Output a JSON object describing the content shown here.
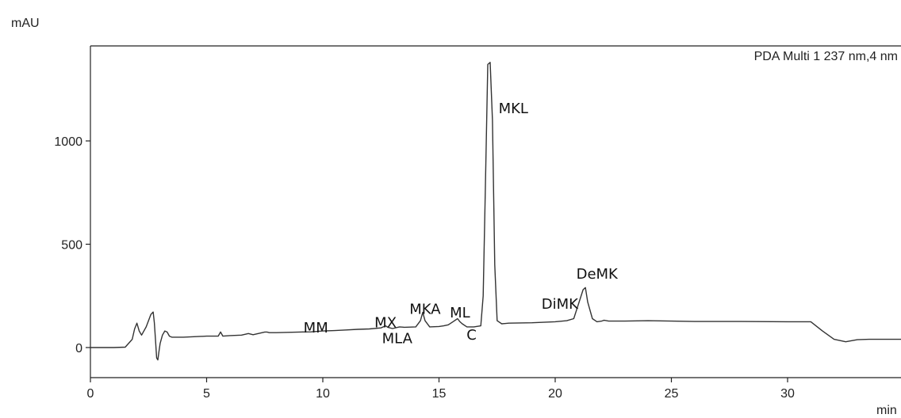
{
  "chart_data": {
    "type": "line",
    "title": "",
    "xlabel": "min",
    "ylabel": "mAU",
    "xlim": [
      0,
      35
    ],
    "ylim": [
      -120,
      1460
    ],
    "x_ticks": [
      0,
      5,
      10,
      15,
      20,
      25,
      30
    ],
    "y_ticks": [
      0,
      500,
      1000
    ],
    "grid": false,
    "legend": {
      "label": "PDA Multi 1 237 nm,4 nm",
      "position": "top-right"
    },
    "series": [
      {
        "name": "PDA Multi 1 237 nm,4 nm",
        "x": [
          0,
          1,
          1.5,
          1.8,
          1.9,
          2.0,
          2.1,
          2.2,
          2.4,
          2.6,
          2.7,
          2.75,
          2.8,
          2.85,
          2.9,
          2.95,
          3.0,
          3.1,
          3.2,
          3.3,
          3.4,
          3.5,
          4,
          5,
          5.5,
          5.6,
          5.7,
          6,
          6.5,
          6.8,
          7,
          7.5,
          7.6,
          7.7,
          8,
          9,
          9.5,
          10,
          10.5,
          11,
          11.5,
          12,
          12.5,
          12.7,
          12.8,
          13,
          13.3,
          13.5,
          14,
          14.2,
          14.3,
          14.4,
          14.6,
          15,
          15.2,
          15.4,
          15.6,
          15.8,
          15.9,
          16,
          16.2,
          16.5,
          16.8,
          16.9,
          17.0,
          17.1,
          17.2,
          17.3,
          17.4,
          17.5,
          17.7,
          18,
          19,
          20,
          20.5,
          20.8,
          21.0,
          21.2,
          21.3,
          21.4,
          21.6,
          21.8,
          22,
          22.1,
          22.3,
          23,
          24,
          25,
          26,
          28,
          30,
          31,
          31.5,
          32,
          32.5,
          33,
          33.5,
          35
        ],
        "values": [
          0,
          0,
          2,
          40,
          90,
          118,
          80,
          60,
          100,
          160,
          172,
          120,
          40,
          -50,
          -60,
          -20,
          20,
          60,
          80,
          75,
          55,
          50,
          50,
          55,
          55,
          75,
          55,
          58,
          60,
          68,
          62,
          75,
          75,
          72,
          72,
          75,
          76,
          80,
          82,
          85,
          88,
          90,
          95,
          105,
          98,
          92,
          100,
          98,
          100,
          130,
          170,
          130,
          100,
          102,
          105,
          110,
          125,
          140,
          125,
          115,
          100,
          100,
          105,
          250,
          800,
          1370,
          1380,
          1100,
          400,
          130,
          115,
          118,
          120,
          125,
          130,
          140,
          210,
          280,
          290,
          220,
          140,
          125,
          128,
          132,
          128,
          128,
          130,
          128,
          126,
          126,
          125,
          125,
          80,
          40,
          28,
          38,
          40,
          40
        ]
      }
    ],
    "annotations": [
      {
        "text": "MM",
        "x": 9.7,
        "y": 72
      },
      {
        "text": "MX",
        "x": 12.7,
        "y": 97
      },
      {
        "text": "MLA",
        "x": 13.2,
        "y": 22
      },
      {
        "text": "MKA",
        "x": 14.4,
        "y": 162
      },
      {
        "text": "ML",
        "x": 15.9,
        "y": 145
      },
      {
        "text": "C",
        "x": 16.4,
        "y": 38
      },
      {
        "text": "MKL",
        "x": 18.2,
        "y": 1135
      },
      {
        "text": "DiMK",
        "x": 20.2,
        "y": 188
      },
      {
        "text": "DeMK",
        "x": 21.8,
        "y": 333
      }
    ]
  }
}
